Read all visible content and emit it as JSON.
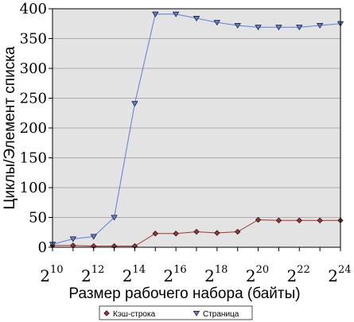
{
  "chart_data": {
    "type": "line",
    "title": "",
    "xlabel": "Размер рабочего набора (байты)",
    "ylabel": "Циклы/Элемент списка",
    "x_exponents": [
      10,
      11,
      12,
      13,
      14,
      15,
      16,
      17,
      18,
      19,
      20,
      21,
      22,
      23,
      24
    ],
    "x_tick_exponents": [
      10,
      12,
      14,
      16,
      18,
      20,
      22,
      24
    ],
    "x_tick_base": "2",
    "xlim_exp": [
      10,
      24
    ],
    "ylim": [
      0,
      400
    ],
    "y_ticks": [
      0,
      50,
      100,
      150,
      200,
      250,
      300,
      350,
      400
    ],
    "grid": true,
    "legend_position": "bottom",
    "series": [
      {
        "name": "Кэш-строка",
        "color": "#a03333",
        "marker": "diamond",
        "values": [
          3,
          3,
          2,
          2,
          2,
          23,
          23,
          26,
          24,
          26,
          46,
          45,
          45,
          45,
          45
        ]
      },
      {
        "name": "Страница",
        "color": "#5b7fd6",
        "marker": "triangle-down",
        "values": [
          5,
          14,
          18,
          50,
          241,
          391,
          391,
          384,
          377,
          372,
          369,
          369,
          369,
          372,
          375
        ]
      }
    ]
  }
}
